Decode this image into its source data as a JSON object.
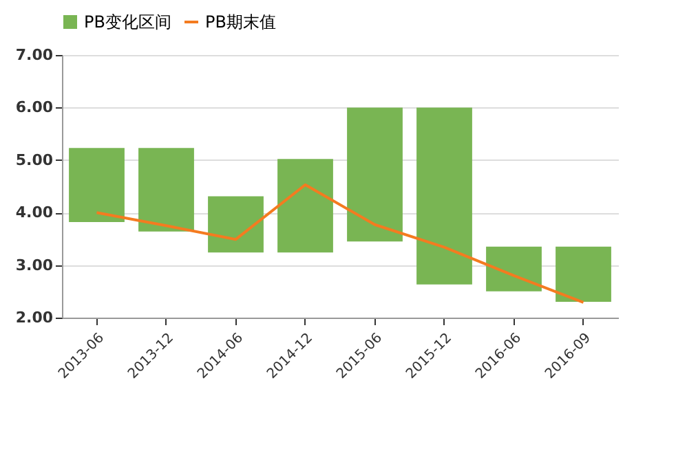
{
  "chart_data": {
    "type": "bar",
    "categories": [
      "2013-06",
      "2013-12",
      "2014-06",
      "2014-12",
      "2015-06",
      "2015-12",
      "2016-06",
      "2016-09"
    ],
    "series": [
      {
        "name": "PB变化区间",
        "color": "#79b553",
        "base": [
          3.82,
          3.64,
          3.24,
          3.24,
          3.45,
          2.63,
          2.5,
          2.3
        ],
        "values": [
          1.41,
          1.59,
          1.07,
          1.78,
          2.55,
          3.37,
          0.85,
          1.05
        ]
      },
      {
        "name": "PB期末值",
        "type": "line",
        "color": "#f47b20",
        "values": [
          4.0,
          3.75,
          3.49,
          4.53,
          3.77,
          3.34,
          2.8,
          2.29
        ]
      }
    ],
    "ylim": [
      2,
      7
    ],
    "yticks": [
      {
        "value": 2,
        "label": "2.00"
      },
      {
        "value": 3,
        "label": "3.00"
      },
      {
        "value": 4,
        "label": "4.00"
      },
      {
        "value": 5,
        "label": "5.00"
      },
      {
        "value": 6,
        "label": "6.00"
      },
      {
        "value": 7,
        "label": "7.00"
      }
    ],
    "grid": "y",
    "legend": "top",
    "marker": "none",
    "line_style": "solid"
  }
}
